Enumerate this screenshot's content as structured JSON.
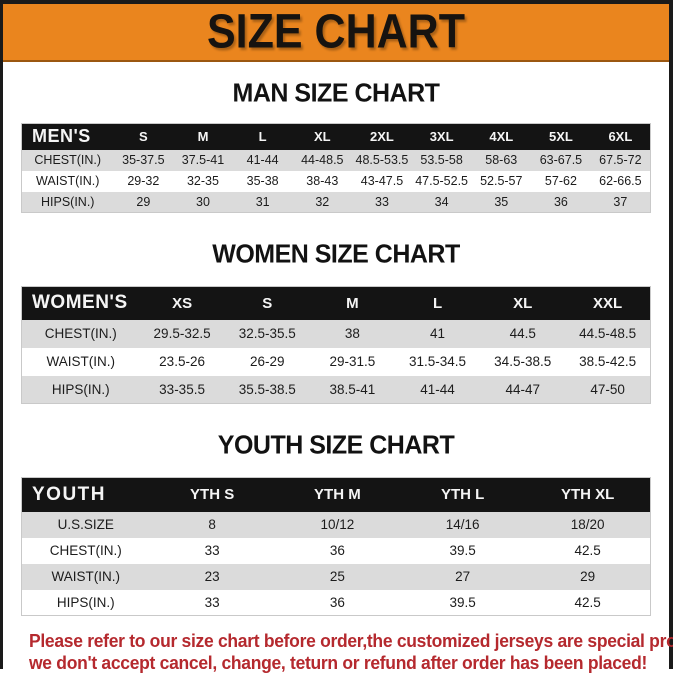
{
  "colors": {
    "banner_bg": "#EA851E",
    "frame_black": "#1A1A1A",
    "header_bar": "#141414",
    "stripe": "#DBDBDB",
    "note_red": "#B5292E"
  },
  "banner": {
    "title": "SIZE CHART"
  },
  "sections": [
    {
      "id": "mens",
      "heading": "MAN SIZE CHART",
      "table": {
        "header": [
          "MEN'S",
          "S",
          "M",
          "L",
          "XL",
          "2XL",
          "3XL",
          "4XL",
          "5XL",
          "6XL"
        ],
        "rows": [
          {
            "label": "CHEST(IN.)",
            "values": [
              "35-37.5",
              "37.5-41",
              "41-44",
              "44-48.5",
              "48.5-53.5",
              "53.5-58",
              "58-63",
              "63-67.5",
              "67.5-72"
            ]
          },
          {
            "label": "WAIST(IN.)",
            "values": [
              "29-32",
              "32-35",
              "35-38",
              "38-43",
              "43-47.5",
              "47.5-52.5",
              "52.5-57",
              "57-62",
              "62-66.5"
            ]
          },
          {
            "label": "HIPS(IN.)",
            "values": [
              "29",
              "30",
              "31",
              "32",
              "33",
              "34",
              "35",
              "36",
              "37"
            ]
          }
        ]
      }
    },
    {
      "id": "womens",
      "heading": "WOMEN SIZE CHART",
      "table": {
        "header": [
          "WOMEN'S",
          "XS",
          "S",
          "M",
          "L",
          "XL",
          "XXL"
        ],
        "rows": [
          {
            "label": "CHEST(IN.)",
            "values": [
              "29.5-32.5",
              "32.5-35.5",
              "38",
              "41",
              "44.5",
              "44.5-48.5"
            ]
          },
          {
            "label": "WAIST(IN.)",
            "values": [
              "23.5-26",
              "26-29",
              "29-31.5",
              "31.5-34.5",
              "34.5-38.5",
              "38.5-42.5"
            ]
          },
          {
            "label": "HIPS(IN.)",
            "values": [
              "33-35.5",
              "35.5-38.5",
              "38.5-41",
              "41-44",
              "44-47",
              "47-50"
            ]
          }
        ]
      }
    },
    {
      "id": "youth",
      "heading": "YOUTH SIZE CHART",
      "table": {
        "header": [
          "YOUTH",
          "YTH S",
          "YTH M",
          "YTH L",
          "YTH XL"
        ],
        "rows": [
          {
            "label": "U.S.SIZE",
            "values": [
              "8",
              "10/12",
              "14/16",
              "18/20"
            ]
          },
          {
            "label": "CHEST(IN.)",
            "values": [
              "33",
              "36",
              "39.5",
              "42.5"
            ]
          },
          {
            "label": "WAIST(IN.)",
            "values": [
              "23",
              "25",
              "27",
              "29"
            ]
          },
          {
            "label": "HIPS(IN.)",
            "values": [
              "33",
              "36",
              "39.5",
              "42.5"
            ]
          }
        ]
      }
    }
  ],
  "footer": {
    "line1": "Please refer to our size chart before order,the customized jerseys are special products,",
    "line2": "we don't accept cancel, change, teturn or refund after order has been placed!"
  }
}
